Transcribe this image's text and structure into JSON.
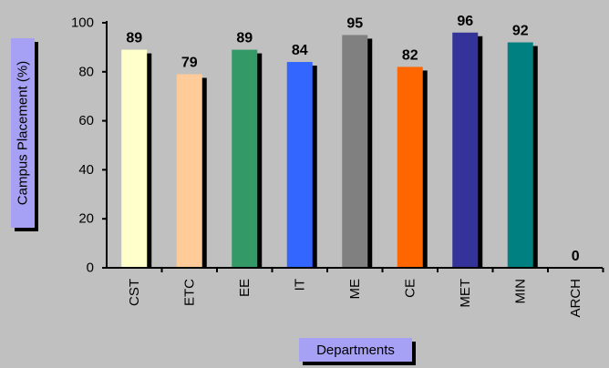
{
  "chart_data": {
    "type": "bar",
    "categories": [
      "CST",
      "ETC",
      "EE",
      "IT",
      "ME",
      "CE",
      "MET",
      "MIN",
      "ARCH"
    ],
    "values": [
      89,
      79,
      89,
      84,
      95,
      82,
      96,
      92,
      0
    ],
    "data_labels": [
      "89",
      "79",
      "89",
      "84",
      "95",
      "82",
      "96",
      "92",
      "0"
    ],
    "colors": [
      "#ffffcc",
      "#ffcc99",
      "#339966",
      "#3366ff",
      "#808080",
      "#ff6600",
      "#333399",
      "#008080",
      "#c0c0c0"
    ],
    "xlabel": "Departments",
    "ylabel": "Campus Placement (%)",
    "ylim": [
      0,
      100
    ],
    "yticks": [
      "0",
      "20",
      "40",
      "60",
      "80",
      "100"
    ],
    "grid": false,
    "background": "#c0c0c0",
    "shadow_color": "#000000"
  }
}
